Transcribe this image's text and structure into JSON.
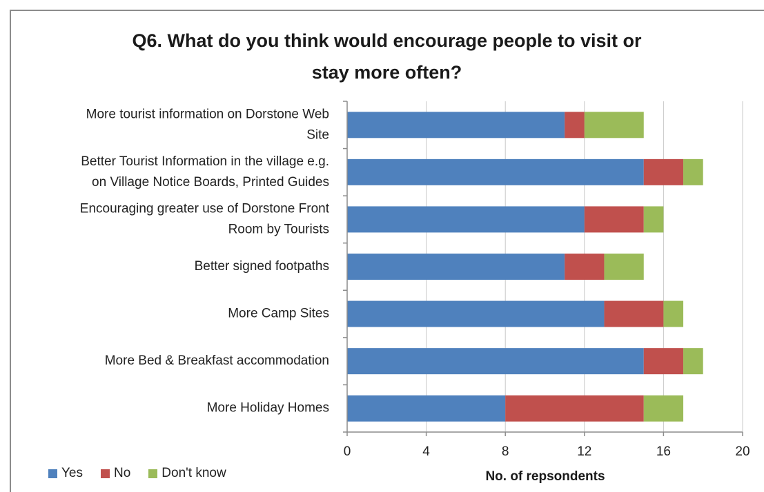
{
  "chart_data": {
    "type": "bar",
    "orientation": "horizontal",
    "stacked": true,
    "title": "Q6. What do you think would encourage people to visit or stay more often?",
    "title_lines": [
      "Q6. What do you think would encourage people to visit or",
      "stay more often?"
    ],
    "xlabel": "No. of repsondents",
    "ylabel": "",
    "categories": [
      [
        "More tourist information on Dorstone Web",
        "Site"
      ],
      [
        "Better Tourist Information in the village e.g.",
        "on Village Notice Boards, Printed Guides"
      ],
      [
        "Encouraging greater use of Dorstone Front",
        "Room by Tourists"
      ],
      [
        "Better signed footpaths"
      ],
      [
        "More Camp Sites"
      ],
      [
        "More Bed & Breakfast accommodation"
      ],
      [
        "More Holiday Homes"
      ]
    ],
    "series": [
      {
        "name": "Yes",
        "color": "#4F81BD",
        "values": [
          11,
          15,
          12,
          11,
          13,
          15,
          8
        ]
      },
      {
        "name": "No",
        "color": "#C0504D",
        "values": [
          1,
          2,
          3,
          2,
          3,
          2,
          7
        ]
      },
      {
        "name": "Don't know",
        "color": "#9BBB59",
        "values": [
          3,
          1,
          1,
          2,
          1,
          1,
          2
        ]
      }
    ],
    "xlim": [
      0,
      20
    ],
    "xticks": [
      0,
      4,
      8,
      12,
      16,
      20
    ],
    "grid": true,
    "legend_position": "bottom-left"
  }
}
